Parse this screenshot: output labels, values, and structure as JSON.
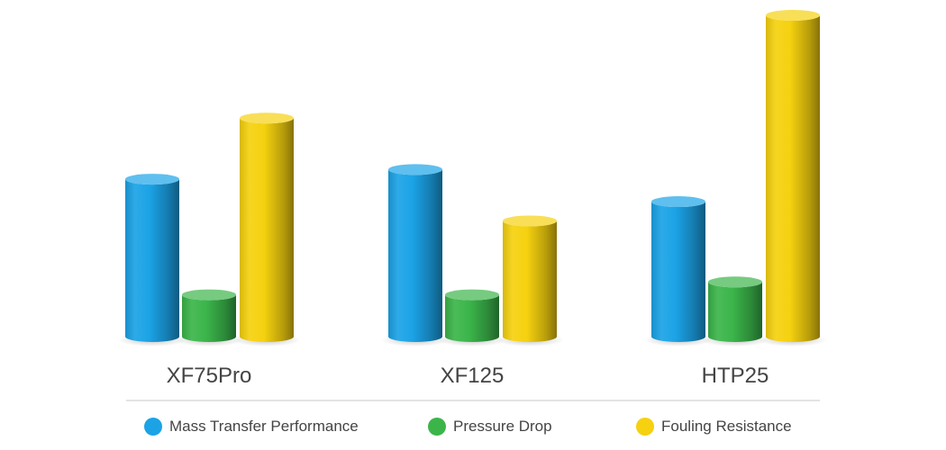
{
  "chart_data": {
    "type": "bar",
    "style": "3d-cylinder",
    "title": "",
    "xlabel": "",
    "ylabel": "",
    "ylim": [
      0,
      100
    ],
    "grid": false,
    "legend_position": "bottom",
    "categories": [
      "XF75Pro",
      "XF125",
      "HTP25"
    ],
    "series": [
      {
        "name": "Mass Transfer Performance",
        "color": "#1BA3E6",
        "values": [
          49,
          52,
          42
        ]
      },
      {
        "name": "Pressure Drop",
        "color": "#3BB54A",
        "values": [
          13,
          13,
          17
        ]
      },
      {
        "name": "Fouling Resistance",
        "color": "#F5D10F",
        "values": [
          68,
          36,
          100
        ]
      }
    ]
  }
}
